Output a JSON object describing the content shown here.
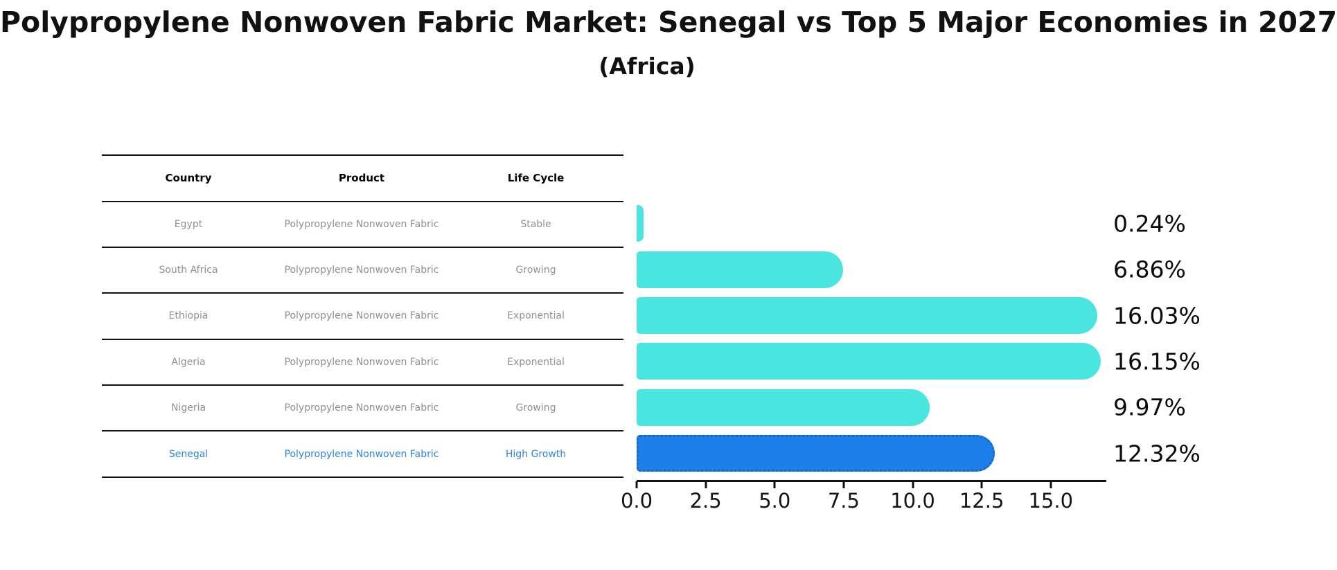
{
  "title": "Polypropylene Nonwoven Fabric Market: Senegal vs Top 5 Major Economies in 2027",
  "subtitle": "(Africa)",
  "table": {
    "headers": [
      "Country",
      "Product",
      "Life Cycle"
    ],
    "rows": [
      {
        "country": "Egypt",
        "product": "Polypropylene Nonwoven Fabric",
        "life_cycle": "Stable"
      },
      {
        "country": "South Africa",
        "product": "Polypropylene Nonwoven Fabric",
        "life_cycle": "Growing"
      },
      {
        "country": "Ethiopia",
        "product": "Polypropylene Nonwoven Fabric",
        "life_cycle": "Exponential"
      },
      {
        "country": "Algeria",
        "product": "Polypropylene Nonwoven Fabric",
        "life_cycle": "Exponential"
      },
      {
        "country": "Nigeria",
        "product": "Polypropylene Nonwoven Fabric",
        "life_cycle": "Growing"
      },
      {
        "country": "Senegal",
        "product": "Polypropylene Nonwoven Fabric",
        "life_cycle": "High Growth"
      }
    ],
    "highlight_row_index": 5
  },
  "chart_data": {
    "type": "bar",
    "orientation": "horizontal",
    "title": "Polypropylene Nonwoven Fabric Market: Senegal vs Top 5 Major Economies in 2027 (Africa)",
    "categories": [
      "Egypt",
      "South Africa",
      "Ethiopia",
      "Algeria",
      "Nigeria",
      "Senegal"
    ],
    "values": [
      0.24,
      6.86,
      16.03,
      16.15,
      9.97,
      12.32
    ],
    "labels": [
      "0.24%",
      "6.86%",
      "16.03%",
      "16.15%",
      "9.97%",
      "12.32%"
    ],
    "xticks": [
      0.0,
      2.5,
      5.0,
      7.5,
      10.0,
      12.5,
      15.0
    ],
    "xtick_labels": [
      "0.0",
      "2.5",
      "5.0",
      "7.5",
      "10.0",
      "12.5",
      "15.0"
    ],
    "xlim": [
      0,
      17
    ],
    "grid": false,
    "legend": null,
    "highlight_index": 5,
    "bar_color": "#4BE5E0",
    "highlight_bar_color": "#1E7FE8",
    "highlight_edge_color": "#1565CD"
  },
  "colors": {
    "row_text": "#909090",
    "header_text": "#000000",
    "highlight_text": "#2E86DE",
    "axis": "#111111",
    "value_label": "#0a0a0a"
  }
}
